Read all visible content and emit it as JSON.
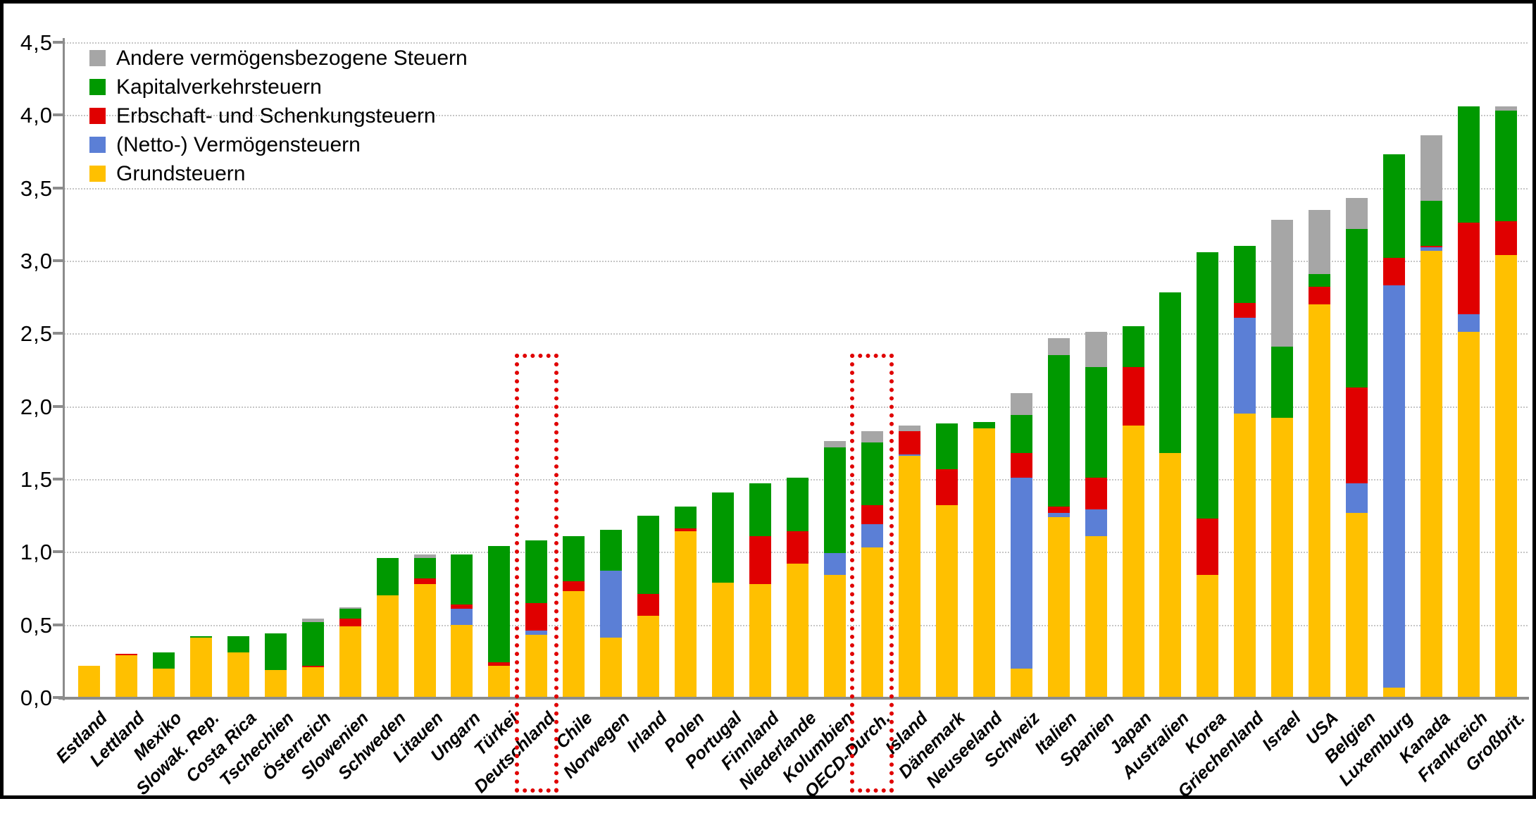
{
  "chart_data": {
    "type": "bar",
    "stacked": true,
    "title": "",
    "xlabel": "",
    "ylabel": "",
    "ylim": [
      0,
      4.5
    ],
    "ytick_step": 0.5,
    "ytick_labels": [
      "0,0",
      "0,5",
      "1,0",
      "1,5",
      "2,0",
      "2,5",
      "3,0",
      "3,5",
      "4,0",
      "4,5"
    ],
    "grid": "horizontal-dotted",
    "legend_position": "top-left",
    "categories": [
      "Estland",
      "Lettland",
      "Mexiko",
      "Slowak. Rep.",
      "Costa Rica",
      "Tschechien",
      "Österreich",
      "Slowenien",
      "Schweden",
      "Litauen",
      "Ungarn",
      "Türkei",
      "Deutschland",
      "Chile",
      "Norwegen",
      "Irland",
      "Polen",
      "Portugal",
      "Finnland",
      "Niederlande",
      "Kolumbien",
      "OECD-Durch.",
      "Island",
      "Dänemark",
      "Neuseeland",
      "Schweiz",
      "Italien",
      "Spanien",
      "Japan",
      "Australien",
      "Korea",
      "Griechenland",
      "Israel",
      "USA",
      "Belgien",
      "Luxemburg",
      "Kanada",
      "Frankreich",
      "Großbrit."
    ],
    "series": [
      {
        "name": "Grundsteuern",
        "color": "#FFC000",
        "values": [
          0.22,
          0.29,
          0.2,
          0.41,
          0.31,
          0.19,
          0.21,
          0.49,
          0.7,
          0.78,
          0.5,
          0.22,
          0.43,
          0.73,
          0.41,
          0.56,
          1.14,
          0.79,
          0.78,
          0.92,
          0.84,
          1.03,
          1.66,
          1.32,
          1.85,
          0.2,
          1.24,
          1.11,
          1.87,
          1.68,
          0.84,
          1.95,
          1.92,
          2.7,
          1.27,
          0.07,
          3.07,
          2.51,
          3.04
        ]
      },
      {
        "name": "(Netto-) Vermögensteuern",
        "color": "#5B7FD6",
        "values": [
          0,
          0,
          0,
          0,
          0,
          0,
          0,
          0,
          0,
          0,
          0.11,
          0,
          0.03,
          0,
          0.46,
          0,
          0,
          0,
          0,
          0,
          0.15,
          0.16,
          0.01,
          0,
          0,
          1.31,
          0.03,
          0.18,
          0,
          0,
          0,
          0.66,
          0,
          0,
          0.2,
          2.76,
          0.02,
          0.12,
          0
        ]
      },
      {
        "name": "Erbschaft- und Schenkungsteuern",
        "color": "#E00000",
        "values": [
          0,
          0.01,
          0,
          0,
          0,
          0,
          0.01,
          0.05,
          0,
          0.04,
          0.03,
          0.02,
          0.19,
          0.07,
          0,
          0.15,
          0.02,
          0,
          0.33,
          0.22,
          0,
          0.13,
          0.16,
          0.25,
          0,
          0.17,
          0.04,
          0.22,
          0.4,
          0,
          0.39,
          0.1,
          0,
          0.12,
          0.66,
          0.19,
          0.01,
          0.63,
          0.23
        ]
      },
      {
        "name": "Kapitalverkehrsteuern",
        "color": "#009900",
        "values": [
          0,
          0,
          0.11,
          0.01,
          0.11,
          0.25,
          0.3,
          0.07,
          0.26,
          0.14,
          0.34,
          0.8,
          0.43,
          0.31,
          0.28,
          0.54,
          0.15,
          0.62,
          0.36,
          0.37,
          0.73,
          0.43,
          0,
          0.31,
          0.04,
          0.26,
          1.04,
          0.76,
          0.28,
          1.1,
          1.83,
          0.39,
          0.49,
          0.09,
          1.09,
          0.71,
          0.31,
          0.8,
          0.76
        ]
      },
      {
        "name": "Andere vermögensbezogene Steuern",
        "color": "#A6A6A6",
        "values": [
          0,
          0,
          0,
          0,
          0,
          0,
          0.02,
          0.01,
          0,
          0.02,
          0,
          0,
          0,
          0,
          0,
          0,
          0,
          0,
          0,
          0,
          0.04,
          0.08,
          0.04,
          0,
          0,
          0.15,
          0.12,
          0.24,
          0,
          0,
          0,
          0,
          0.87,
          0.44,
          0.21,
          0,
          0.45,
          0,
          0.03
        ]
      }
    ],
    "legend": [
      {
        "label": "Andere vermögensbezogene Steuern",
        "color": "#A6A6A6"
      },
      {
        "label": "Kapitalverkehrsteuern",
        "color": "#009900"
      },
      {
        "label": "Erbschaft- und Schenkungsteuern",
        "color": "#E00000"
      },
      {
        "label": "(Netto-) Vermögensteuern",
        "color": "#5B7FD6"
      },
      {
        "label": "Grundsteuern",
        "color": "#FFC000"
      }
    ],
    "highlighted_categories": [
      "Deutschland",
      "OECD-Durch."
    ],
    "highlight_color": "#E00000",
    "highlight_style": "red-dotted-box"
  }
}
